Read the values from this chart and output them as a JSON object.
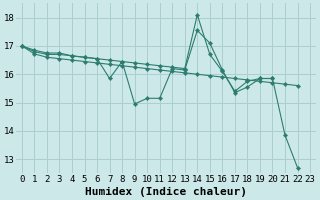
{
  "xlabel": "Humidex (Indice chaleur)",
  "bg_color": "#cce8e8",
  "grid_color": "#aacfcf",
  "line_color": "#2d7d6e",
  "xlim": [
    -0.5,
    23.5
  ],
  "ylim": [
    12.5,
    18.5
  ],
  "xticks": [
    0,
    1,
    2,
    3,
    4,
    5,
    6,
    7,
    8,
    9,
    10,
    11,
    12,
    13,
    14,
    15,
    16,
    17,
    18,
    19,
    20,
    21,
    22,
    23
  ],
  "yticks": [
    13,
    14,
    15,
    16,
    17,
    18
  ],
  "series": [
    {
      "x": [
        0,
        1,
        2,
        3,
        4,
        5,
        6,
        7,
        8,
        9,
        10,
        11,
        12,
        13,
        14,
        15,
        16,
        17,
        18,
        19,
        20,
        21,
        22
      ],
      "y": [
        17.0,
        16.85,
        16.75,
        16.75,
        16.65,
        16.6,
        16.55,
        15.85,
        16.45,
        14.95,
        15.15,
        15.15,
        16.2,
        16.15,
        17.55,
        17.1,
        16.15,
        15.35,
        15.55,
        15.85,
        15.85,
        13.85,
        12.7
      ]
    },
    {
      "x": [
        0,
        1,
        2,
        3,
        4,
        5,
        6,
        7,
        8,
        9,
        10,
        11,
        12,
        13,
        14,
        15,
        16,
        17,
        18,
        19,
        20
      ],
      "y": [
        17.0,
        16.8,
        16.7,
        16.7,
        16.65,
        16.6,
        16.55,
        16.5,
        16.45,
        16.4,
        16.35,
        16.3,
        16.25,
        16.2,
        18.1,
        16.7,
        16.1,
        15.4,
        15.75,
        15.85,
        15.85
      ]
    },
    {
      "x": [
        0,
        1,
        2,
        3,
        4,
        5,
        6,
        7,
        8,
        9,
        10,
        11,
        12,
        13,
        14,
        15,
        16,
        17,
        18,
        19,
        20,
        21,
        22
      ],
      "y": [
        17.0,
        16.72,
        16.6,
        16.55,
        16.5,
        16.45,
        16.4,
        16.35,
        16.3,
        16.25,
        16.2,
        16.15,
        16.1,
        16.05,
        16.0,
        15.95,
        15.9,
        15.85,
        15.8,
        15.75,
        15.7,
        15.65,
        15.6
      ]
    }
  ],
  "xlabel_fontsize": 8,
  "tick_fontsize": 6.5,
  "dpi": 100
}
